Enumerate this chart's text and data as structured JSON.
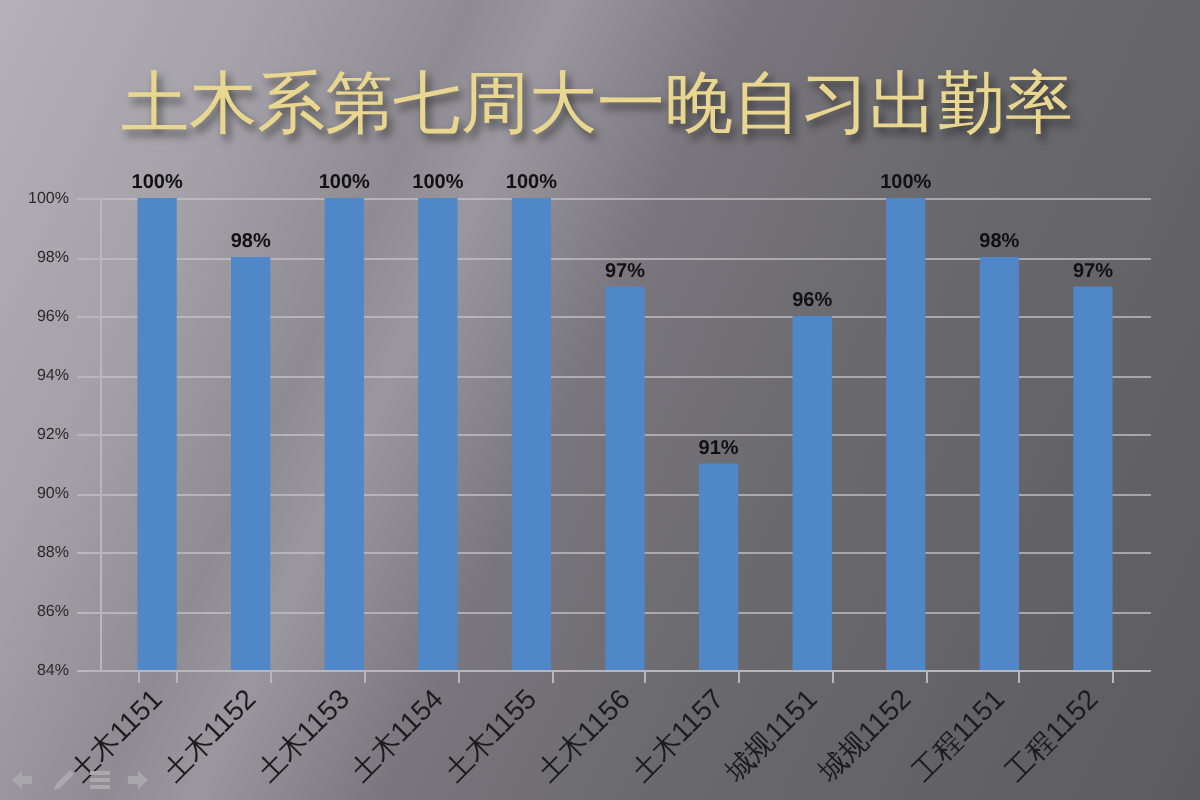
{
  "chart_data": {
    "type": "bar",
    "title": "土木系第七周大一晚自习出勤率",
    "categories": [
      "土木1151",
      "土木1152",
      "土木1153",
      "土木1154",
      "土木1155",
      "土木1156",
      "土木1157",
      "城规1151",
      "城规1152",
      "工程1151",
      "工程1152"
    ],
    "values": [
      100,
      98,
      100,
      100,
      100,
      97,
      91,
      96,
      100,
      98,
      97
    ],
    "value_labels": [
      "100%",
      "98%",
      "100%",
      "100%",
      "100%",
      "97%",
      "91%",
      "96%",
      "100%",
      "98%",
      "97%"
    ],
    "color": "#4f87c9",
    "ylim": [
      84,
      100
    ],
    "yticks": [
      {
        "value": 84,
        "label": "84%"
      },
      {
        "value": 86,
        "label": "86%"
      },
      {
        "value": 88,
        "label": "88%"
      },
      {
        "value": 90,
        "label": "90%"
      },
      {
        "value": 92,
        "label": "92%"
      },
      {
        "value": 94,
        "label": "94%"
      },
      {
        "value": 96,
        "label": "96%"
      },
      {
        "value": 98,
        "label": "98%"
      },
      {
        "value": 100,
        "label": "100%"
      }
    ],
    "grid": "y"
  }
}
